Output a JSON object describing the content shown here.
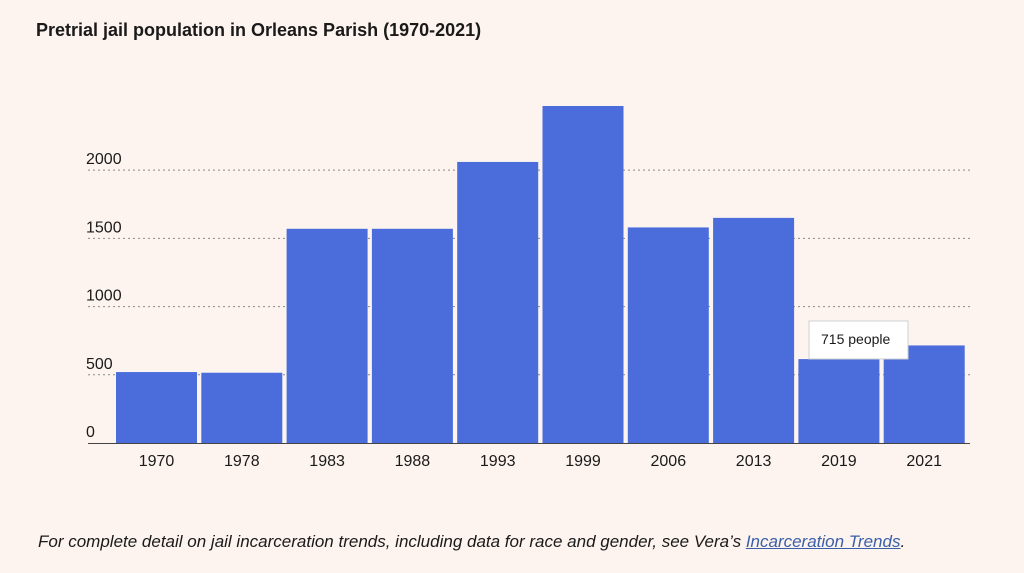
{
  "title": "Pretrial jail population in Orleans Parish (1970-2021)",
  "footnote": {
    "prefix": "For complete detail on jail incarceration trends, including data for race and gender, see Vera’s ",
    "link_text": "Incarceration Trends",
    "suffix": "."
  },
  "tooltip": {
    "text": "715 people"
  },
  "colors": {
    "bar": "#4a6ddb",
    "grid": "#8a8a8a",
    "background": "#fdf4ef"
  },
  "chart_data": {
    "type": "bar",
    "categories": [
      "1970",
      "1978",
      "1983",
      "1988",
      "1993",
      "1999",
      "2006",
      "2013",
      "2019",
      "2021"
    ],
    "values": [
      520,
      515,
      1570,
      1570,
      2060,
      2470,
      1580,
      1650,
      615,
      715
    ],
    "ylim": [
      0,
      2470
    ],
    "yticks": [
      0,
      500,
      1000,
      1500,
      2000
    ],
    "grid": true,
    "highlighted_category": "2021"
  }
}
